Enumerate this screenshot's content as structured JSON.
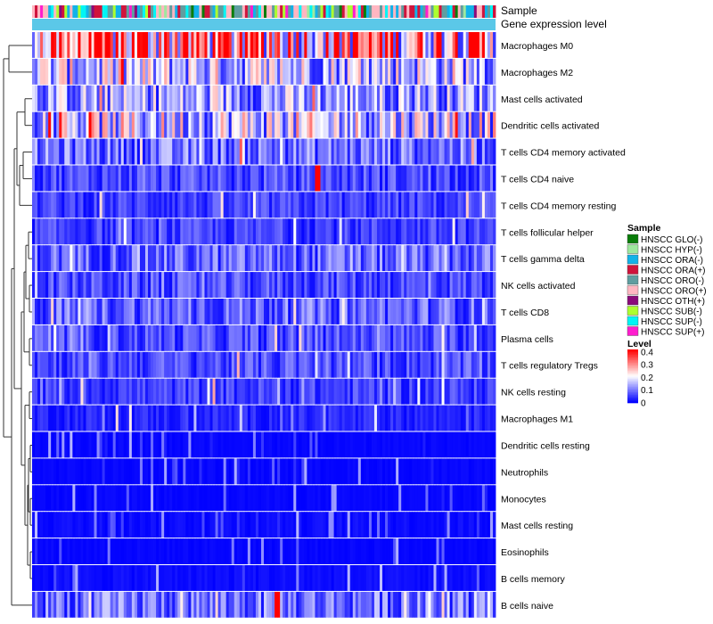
{
  "chart_data": {
    "type": "heatmap",
    "annotation_rows": [
      "Sample",
      "Gene expression level"
    ],
    "rows": [
      "Macrophages M0",
      "Macrophages M2",
      "Mast cells activated",
      "Dendritic cells activated",
      "T cells CD4 memory activated",
      "T cells CD4 naive",
      "T cells CD4 memory resting",
      "T cells follicular helper",
      "T cells gamma delta",
      "NK cells activated",
      "T cells CD8",
      "Plasma cells",
      "T cells regulatory  Tregs",
      "NK cells resting",
      "Macrophages M1",
      "Dendritic cells resting",
      "Neutrophils",
      "Monocytes",
      "Mast cells resting",
      "Eosinophils",
      "B cells memory",
      "B cells naive"
    ],
    "row_mean_level": [
      0.3,
      0.16,
      0.13,
      0.17,
      0.09,
      0.06,
      0.05,
      0.05,
      0.08,
      0.06,
      0.08,
      0.06,
      0.06,
      0.05,
      0.03,
      0.01,
      0.01,
      0.01,
      0.02,
      0.01,
      0.02,
      0.09
    ],
    "n_samples": 172,
    "sample_legend": {
      "title": "Sample",
      "items": [
        {
          "label": "HNSCC GLO(-)",
          "color": "#0a7d0a"
        },
        {
          "label": "HNSCC HYP(-)",
          "color": "#9ee89e"
        },
        {
          "label": "HNSCC ORA(-)",
          "color": "#12b2e8"
        },
        {
          "label": "HNSCC ORA(+)",
          "color": "#d0143c"
        },
        {
          "label": "HNSCC ORO(-)",
          "color": "#5f9ea0"
        },
        {
          "label": "HNSCC ORO(+)",
          "color": "#ffb6c1"
        },
        {
          "label": "HNSCC OTH(+)",
          "color": "#8b0a7a"
        },
        {
          "label": "HNSCC SUB(-)",
          "color": "#adff2f"
        },
        {
          "label": "HNSCC SUP(-)",
          "color": "#00f5f5"
        },
        {
          "label": "HNSCC SUP(+)",
          "color": "#ff1dce"
        }
      ]
    },
    "level_legend": {
      "title": "Level",
      "ticks": [
        "0.4",
        "0.3",
        "0.2",
        "0.1",
        "0"
      ],
      "tick_values": [
        0.4,
        0.3,
        0.2,
        0.1,
        0
      ],
      "range": [
        0,
        0.42
      ],
      "colors": {
        "low": "#0000ff",
        "mid": "#ffffff",
        "high": "#ff0000"
      }
    },
    "gene_expression_color": "#5bc8e8"
  }
}
